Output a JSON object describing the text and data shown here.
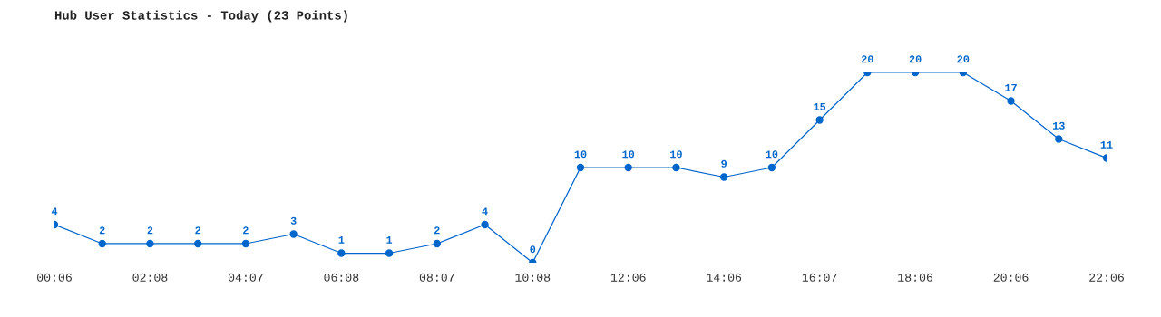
{
  "chart_data": {
    "type": "line",
    "title": "Hub User Statistics - Today (23 Points)",
    "categories": [
      "00:06",
      null,
      "02:08",
      null,
      "04:07",
      null,
      "06:08",
      null,
      "08:07",
      null,
      "10:08",
      null,
      "12:06",
      null,
      "14:06",
      null,
      "16:07",
      null,
      "18:06",
      null,
      "20:06",
      null,
      "22:06"
    ],
    "series": [
      {
        "color": "#0066cc",
        "values": [
          4,
          2,
          2,
          2,
          2,
          3,
          1,
          1,
          2,
          4,
          0,
          10,
          10,
          10,
          9,
          10,
          15,
          20,
          20,
          20,
          17,
          13,
          11
        ]
      }
    ],
    "data_labels": true,
    "marker": "circle",
    "line_style": "solid",
    "grid": false,
    "legend": false
  }
}
